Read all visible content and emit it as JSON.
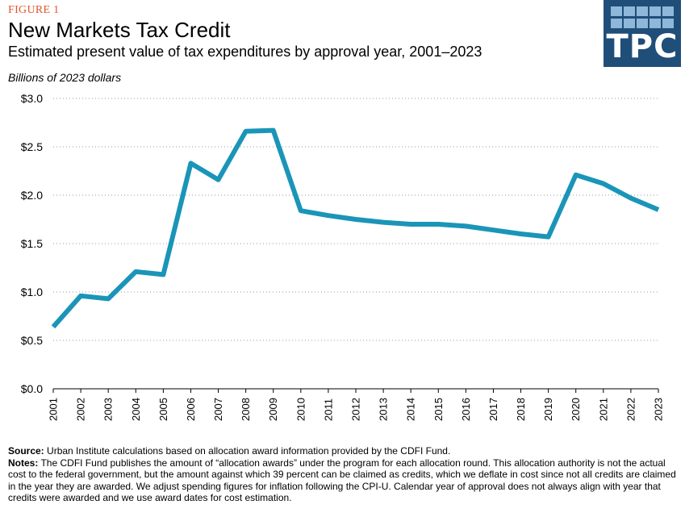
{
  "header": {
    "figure_label": "FIGURE 1",
    "title": "New Markets Tax Credit",
    "subtitle": "Estimated present value of tax expenditures by approval year, 2001–2023",
    "units": "Billions of 2023 dollars"
  },
  "logo": {
    "text": "TPC",
    "bg_color": "#1f4e79",
    "tile_color": "#8fb7d9"
  },
  "chart_data": {
    "type": "line",
    "title": "New Markets Tax Credit",
    "subtitle": "Estimated present value of tax expenditures by approval year, 2001–2023",
    "ylabel": "Billions of 2023 dollars",
    "xlabel": "",
    "ylim": [
      0,
      3.0
    ],
    "y_ticks": [
      0.0,
      0.5,
      1.0,
      1.5,
      2.0,
      2.5,
      3.0
    ],
    "y_tick_labels": [
      "$0.0",
      "$0.5",
      "$1.0",
      "$1.5",
      "$2.0",
      "$2.5",
      "$3.0"
    ],
    "x": [
      "2001",
      "2002",
      "2003",
      "2004",
      "2005",
      "2006",
      "2007",
      "2008",
      "2009",
      "2010",
      "2011",
      "2012",
      "2013",
      "2014",
      "2015",
      "2016",
      "2017",
      "2018",
      "2019",
      "2020",
      "2021",
      "2022",
      "2023"
    ],
    "series": [
      {
        "values": [
          0.64,
          0.96,
          0.93,
          1.21,
          1.18,
          2.33,
          2.16,
          2.66,
          2.67,
          1.84,
          1.79,
          1.75,
          1.72,
          1.7,
          1.7,
          1.68,
          1.64,
          1.6,
          1.57,
          2.21,
          2.12,
          1.97,
          1.85
        ],
        "color": "#1a95b8"
      }
    ],
    "grid": "horizontal dotted",
    "legend": "none"
  },
  "footer": {
    "source_label": "Source:",
    "source_text": "Urban Institute calculations based on allocation award information provided by the CDFI Fund.",
    "notes_label": "Notes:",
    "notes_text": "The CDFI Fund publishes the amount of “allocation awards” under the program for each allocation round. This allocation authority is not the actual cost to the federal government, but the amount against which 39 percent can be claimed as credits, which we deflate in cost since not all credits are claimed in the year they are awarded. We adjust spending figures for inflation following the CPI-U. Calendar year of approval does not always align with year that credits were awarded and we use award dates for cost estimation."
  }
}
